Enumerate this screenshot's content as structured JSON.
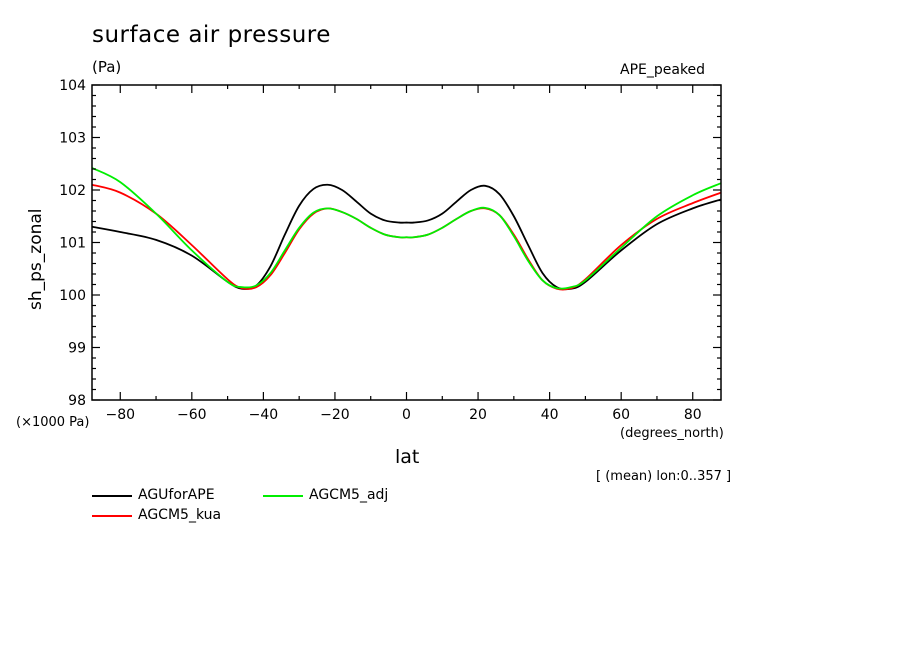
{
  "chart_data": {
    "type": "line",
    "title": "surface air pressure",
    "units": "(Pa)",
    "experiment": "APE_peaked",
    "xlabel": "lat",
    "x_units": "(degrees_north)",
    "ylabel": "sh_ps_zonal",
    "y_scale_note": "(×1000 Pa)",
    "mean_note": "[ (mean) lon:0..357 ]",
    "xlim": [
      -87.9,
      87.9
    ],
    "ylim": [
      98,
      104
    ],
    "x_ticks": [
      -80,
      -60,
      -40,
      -20,
      0,
      20,
      40,
      60,
      80
    ],
    "y_ticks": [
      98,
      99,
      100,
      101,
      102,
      103,
      104
    ],
    "grid": false,
    "legend_position": "below-left",
    "series": [
      {
        "name": "AGUforAPE",
        "color": "#000000",
        "x": [
          -88,
          -80,
          -70,
          -60,
          -50,
          -46,
          -42,
          -38,
          -34,
          -30,
          -26,
          -22,
          -18,
          -14,
          -10,
          -6,
          -2,
          0,
          2,
          6,
          10,
          14,
          18,
          22,
          26,
          30,
          34,
          38,
          42,
          46,
          50,
          60,
          70,
          80,
          88
        ],
        "y": [
          101.3,
          101.2,
          101.05,
          100.75,
          100.25,
          100.12,
          100.18,
          100.55,
          101.15,
          101.7,
          102.02,
          102.1,
          102.0,
          101.78,
          101.55,
          101.42,
          101.38,
          101.38,
          101.38,
          101.42,
          101.55,
          101.78,
          102.0,
          102.08,
          101.92,
          101.5,
          100.95,
          100.42,
          100.15,
          100.12,
          100.25,
          100.85,
          101.35,
          101.65,
          101.82
        ]
      },
      {
        "name": "AGCM5_kua",
        "color": "#ff0000",
        "x": [
          -88,
          -80,
          -70,
          -60,
          -50,
          -46,
          -42,
          -38,
          -34,
          -30,
          -26,
          -22,
          -18,
          -14,
          -10,
          -6,
          -2,
          0,
          2,
          6,
          10,
          14,
          18,
          22,
          26,
          30,
          34,
          38,
          42,
          46,
          50,
          60,
          70,
          80,
          88
        ],
        "y": [
          102.1,
          101.95,
          101.55,
          100.95,
          100.3,
          100.13,
          100.15,
          100.38,
          100.8,
          101.25,
          101.55,
          101.65,
          101.58,
          101.45,
          101.28,
          101.15,
          101.1,
          101.1,
          101.1,
          101.15,
          101.28,
          101.45,
          101.6,
          101.65,
          101.52,
          101.15,
          100.68,
          100.28,
          100.12,
          100.13,
          100.3,
          100.95,
          101.45,
          101.75,
          101.95
        ]
      },
      {
        "name": "AGCM5_adj",
        "color": "#00ee00",
        "x": [
          -88,
          -80,
          -70,
          -60,
          -50,
          -46,
          -42,
          -38,
          -34,
          -30,
          -26,
          -22,
          -18,
          -14,
          -10,
          -6,
          -2,
          0,
          2,
          6,
          10,
          14,
          18,
          22,
          26,
          30,
          34,
          38,
          42,
          46,
          50,
          60,
          70,
          80,
          88
        ],
        "y": [
          102.42,
          102.15,
          101.55,
          100.85,
          100.25,
          100.15,
          100.18,
          100.42,
          100.85,
          101.28,
          101.57,
          101.65,
          101.58,
          101.45,
          101.28,
          101.15,
          101.1,
          101.1,
          101.1,
          101.15,
          101.28,
          101.45,
          101.6,
          101.66,
          101.52,
          101.12,
          100.65,
          100.28,
          100.13,
          100.15,
          100.28,
          100.9,
          101.5,
          101.9,
          102.13
        ]
      }
    ]
  }
}
